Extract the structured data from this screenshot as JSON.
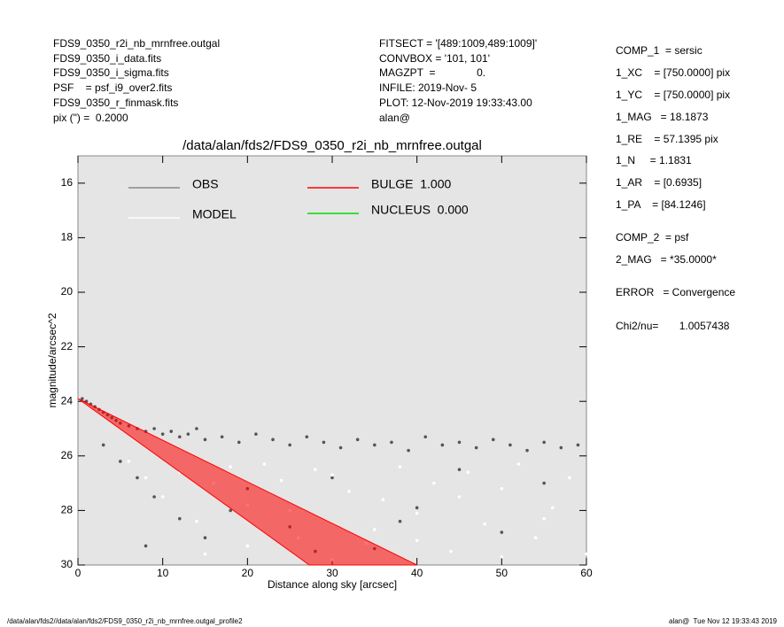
{
  "header": {
    "left": [
      "FDS9_0350_r2i_nb_mrnfree.outgal",
      "FDS9_0350_i_data.fits",
      "FDS9_0350_i_sigma.fits",
      "PSF    = psf_i9_over2.fits",
      "FDS9_0350_r_finmask.fits",
      "pix (\") =  0.2000"
    ],
    "middle": [
      "FITSECT = '[489:1009,489:1009]'",
      "CONVBOX = '101, 101'",
      "MAGZPT  =              0.",
      "INFILE: 2019-Nov- 5",
      "PLOT: 12-Nov-2019 19:33:43.00",
      "alan@"
    ],
    "right": [
      "COMP_1  = sersic",
      "1_XC    = [750.0000] pix",
      "1_YC    = [750.0000] pix",
      "1_MAG   = 18.1873",
      "1_RE    = 57.1395 pix",
      "1_N     = 1.1831",
      "1_AR    = [0.6935]",
      "1_PA    = [84.1246]",
      "COMP_2  = psf",
      "2_MAG   = *35.0000*",
      "ERROR   = Convergence",
      "Chi2/nu=       1.0057438"
    ]
  },
  "footer": {
    "left": "/data/alan/fds2//data/alan/fds2/FDS9_0350_r2i_nb_mrnfree.outgal_profile2",
    "right": "alan@  Tue Nov 12 19:33:43 2019"
  },
  "chart_data": {
    "type": "scatter",
    "title": "/data/alan/fds2/FDS9_0350_r2i_nb_mrnfree.outgal",
    "x_label": "Distance along sky [arcsec]",
    "y_label": "magnitude/arcsec^2",
    "xlim": [
      0,
      60
    ],
    "ylim": [
      30,
      15
    ],
    "xticks": [
      0,
      10,
      20,
      30,
      40,
      50,
      60
    ],
    "yticks": [
      16,
      18,
      20,
      22,
      24,
      26,
      28,
      30
    ],
    "series": [
      {
        "name": "OBS",
        "color": "#555555",
        "x": [
          0.5,
          1,
          1.5,
          2,
          2.5,
          3,
          3.5,
          4,
          4.5,
          5,
          6,
          7,
          8,
          9,
          10,
          11,
          12,
          13,
          14,
          15,
          17,
          19,
          21,
          23,
          25,
          27,
          29,
          31,
          33,
          35,
          37,
          39,
          41,
          43,
          45,
          47,
          49,
          51,
          53,
          55,
          57,
          59,
          3,
          5,
          7,
          9,
          12,
          15,
          20,
          25,
          30,
          35,
          40,
          45,
          50,
          55,
          8,
          18,
          28,
          38
        ],
        "values": [
          23.9,
          24.0,
          24.1,
          24.2,
          24.3,
          24.4,
          24.5,
          24.6,
          24.7,
          24.8,
          24.9,
          25.0,
          25.1,
          25.0,
          25.2,
          25.1,
          25.3,
          25.2,
          25.0,
          25.4,
          25.3,
          25.5,
          25.2,
          25.4,
          25.6,
          25.3,
          25.5,
          25.7,
          25.4,
          25.6,
          25.5,
          25.8,
          25.3,
          25.6,
          25.5,
          25.7,
          25.4,
          25.6,
          25.8,
          25.5,
          25.7,
          25.6,
          25.6,
          26.2,
          26.8,
          27.5,
          28.3,
          29.0,
          27.2,
          28.6,
          26.8,
          29.4,
          27.9,
          26.5,
          28.8,
          27.0,
          29.3,
          28.0,
          29.5,
          28.4
        ]
      },
      {
        "name": "MODEL",
        "color": "#ffffff",
        "x": [
          6,
          8,
          10,
          12,
          14,
          16,
          18,
          20,
          22,
          24,
          26,
          28,
          30,
          32,
          34,
          36,
          38,
          40,
          42,
          44,
          46,
          48,
          50,
          52,
          54,
          56,
          58,
          60,
          15,
          25,
          35,
          45,
          55,
          20,
          30,
          40,
          50
        ],
        "values": [
          26.2,
          26.8,
          27.5,
          26.6,
          28.4,
          27.0,
          26.4,
          27.8,
          26.3,
          26.9,
          29.0,
          26.5,
          26.7,
          27.3,
          29.2,
          27.6,
          26.4,
          28.1,
          27.0,
          29.5,
          26.6,
          28.5,
          27.2,
          26.3,
          29.0,
          27.9,
          26.8,
          29.6,
          29.6,
          28.0,
          28.7,
          27.5,
          28.3,
          29.3,
          29.8,
          29.1,
          29.7
        ]
      },
      {
        "name": "BULGE  1.000",
        "color": "#ff0000",
        "x": [
          0,
          40,
          27.3,
          0
        ],
        "values": [
          23.9,
          30,
          30,
          23.9
        ]
      },
      {
        "name": "NUCLEUS  0.000",
        "color": "#00dd00"
      }
    ]
  }
}
